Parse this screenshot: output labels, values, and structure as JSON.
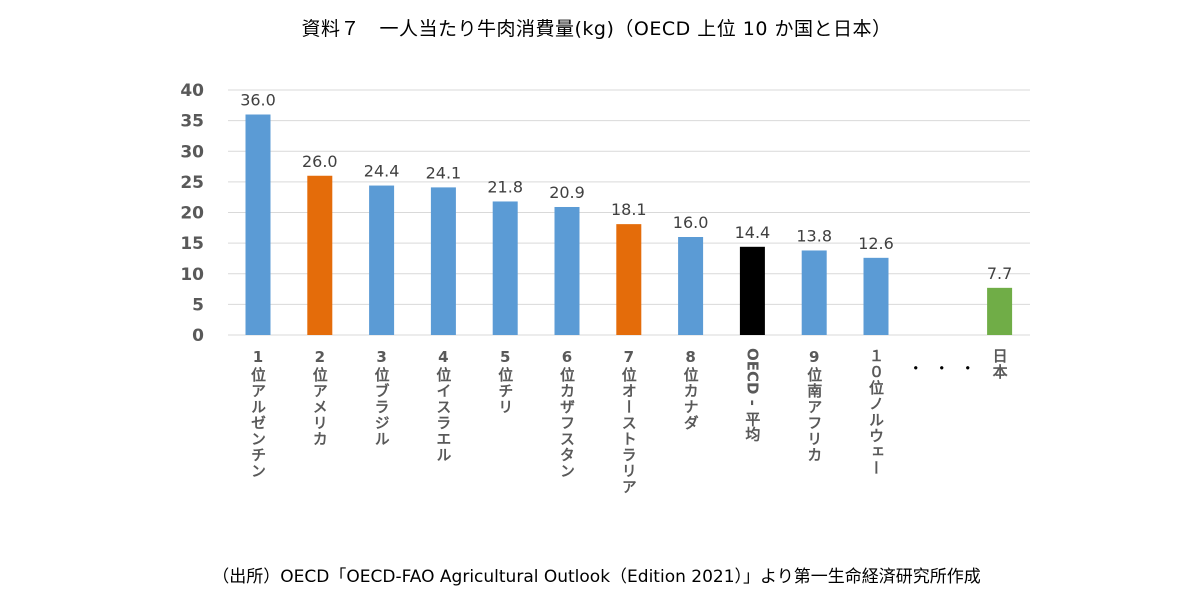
{
  "header": {
    "title": "資料７　一人当たり牛肉消費量(kg)（OECD 上位 10 か国と日本）"
  },
  "footer": {
    "source": "（出所）OECD「OECD-FAO Agricultural Outlook（Edition 2021）」より第一生命経済研究所作成"
  },
  "chart_data": {
    "type": "bar",
    "title": "資料７　一人当たり牛肉消費量(kg)（OECD 上位 10 か国と日本）",
    "xlabel": "",
    "ylabel": "",
    "ylim": [
      0,
      40
    ],
    "yticks": [
      0,
      5,
      10,
      15,
      20,
      25,
      30,
      35,
      40
    ],
    "grid": true,
    "legend": "none",
    "gap_label": "・・・",
    "categories": [
      "1位アルゼンチン",
      "2位アメリカ",
      "3位ブラジル",
      "4位イスラエル",
      "5位チリ",
      "6位カザフスタン",
      "7位オーストラリア",
      "8位カナダ",
      "OECD - 平均",
      "9位南アフリカ",
      "１０位ノルウェー",
      "日本"
    ],
    "values": [
      36.0,
      26.0,
      24.4,
      24.1,
      21.8,
      20.9,
      18.1,
      16.0,
      14.4,
      13.8,
      12.6,
      7.7
    ],
    "data_labels": [
      "36.0",
      "26.0",
      "24.4",
      "24.1",
      "21.8",
      "20.9",
      "18.1",
      "16.0",
      "14.4",
      "13.8",
      "12.6",
      "7.7"
    ],
    "bar_colors": [
      "#5b9bd5",
      "#e46c0a",
      "#5b9bd5",
      "#5b9bd5",
      "#5b9bd5",
      "#5b9bd5",
      "#e46c0a",
      "#5b9bd5",
      "#000000",
      "#5b9bd5",
      "#5b9bd5",
      "#70ad47"
    ],
    "colors": {
      "default": "#5b9bd5",
      "highlight": "#e46c0a",
      "oecd_average": "#000000",
      "japan": "#70ad47",
      "grid": "#d9d9d9"
    }
  }
}
